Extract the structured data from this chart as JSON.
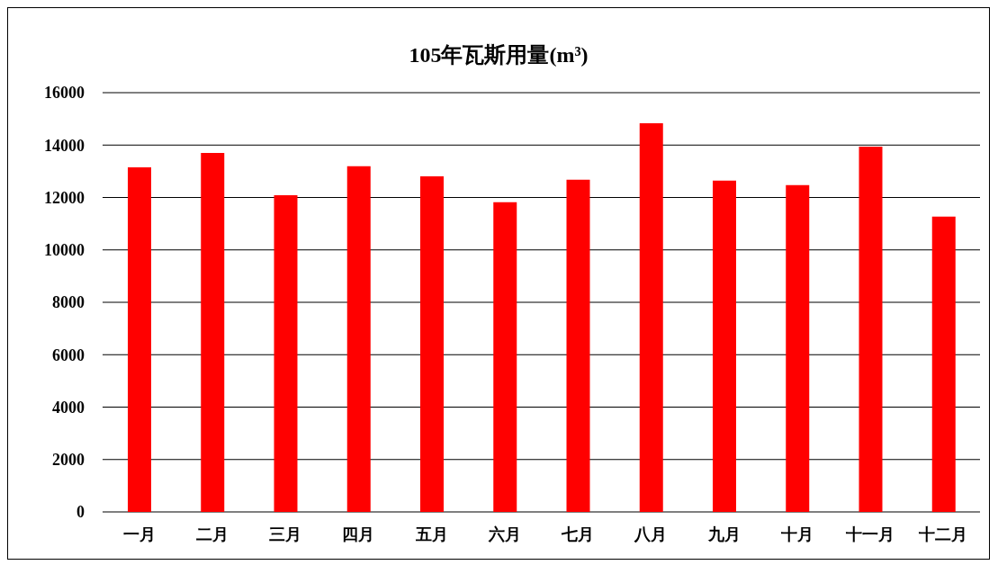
{
  "chart_data": {
    "type": "bar",
    "title": "105年瓦斯用量(m³)",
    "categories": [
      "一月",
      "二月",
      "三月",
      "四月",
      "五月",
      "六月",
      "七月",
      "八月",
      "九月",
      "十月",
      "十一月",
      "十二月"
    ],
    "values": [
      13150,
      13700,
      12090,
      13190,
      12810,
      11820,
      12680,
      14830,
      12640,
      12470,
      13940,
      11270
    ],
    "color": "#ff0000",
    "ylim": [
      0,
      16000
    ],
    "yticks": [
      0,
      2000,
      4000,
      6000,
      8000,
      10000,
      12000,
      14000,
      16000
    ],
    "grid": "y"
  }
}
